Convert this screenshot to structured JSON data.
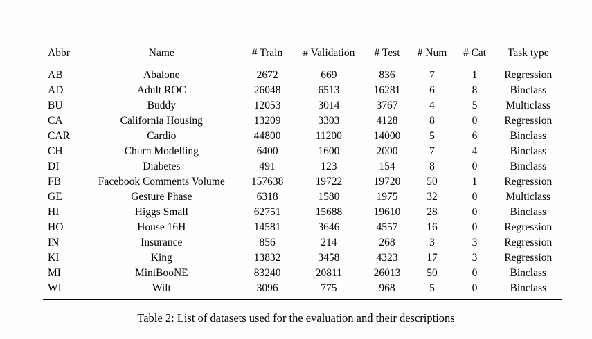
{
  "table": {
    "columns": [
      "Abbr",
      "Name",
      "# Train",
      "# Validation",
      "# Test",
      "# Num",
      "# Cat",
      "Task type"
    ],
    "rows": [
      [
        "AB",
        "Abalone",
        "2672",
        "669",
        "836",
        "7",
        "1",
        "Regression"
      ],
      [
        "AD",
        "Adult ROC",
        "26048",
        "6513",
        "16281",
        "6",
        "8",
        "Binclass"
      ],
      [
        "BU",
        "Buddy",
        "12053",
        "3014",
        "3767",
        "4",
        "5",
        "Multiclass"
      ],
      [
        "CA",
        "California Housing",
        "13209",
        "3303",
        "4128",
        "8",
        "0",
        "Regression"
      ],
      [
        "CAR",
        "Cardio",
        "44800",
        "11200",
        "14000",
        "5",
        "6",
        "Binclass"
      ],
      [
        "CH",
        "Churn Modelling",
        "6400",
        "1600",
        "2000",
        "7",
        "4",
        "Binclass"
      ],
      [
        "DI",
        "Diabetes",
        "491",
        "123",
        "154",
        "8",
        "0",
        "Binclass"
      ],
      [
        "FB",
        "Facebook Comments Volume",
        "157638",
        "19722",
        "19720",
        "50",
        "1",
        "Regression"
      ],
      [
        "GE",
        "Gesture Phase",
        "6318",
        "1580",
        "1975",
        "32",
        "0",
        "Multiclass"
      ],
      [
        "HI",
        "Higgs Small",
        "62751",
        "15688",
        "19610",
        "28",
        "0",
        "Binclass"
      ],
      [
        "HO",
        "House 16H",
        "14581",
        "3646",
        "4557",
        "16",
        "0",
        "Regression"
      ],
      [
        "IN",
        "Insurance",
        "856",
        "214",
        "268",
        "3",
        "3",
        "Regression"
      ],
      [
        "KI",
        "King",
        "13832",
        "3458",
        "4323",
        "17",
        "3",
        "Regression"
      ],
      [
        "MI",
        "MiniBooNE",
        "83240",
        "20811",
        "26013",
        "50",
        "0",
        "Binclass"
      ],
      [
        "WI",
        "Wilt",
        "3096",
        "775",
        "968",
        "5",
        "0",
        "Binclass"
      ]
    ]
  },
  "caption": "Table 2: List of datasets used for the evaluation and their descriptions"
}
